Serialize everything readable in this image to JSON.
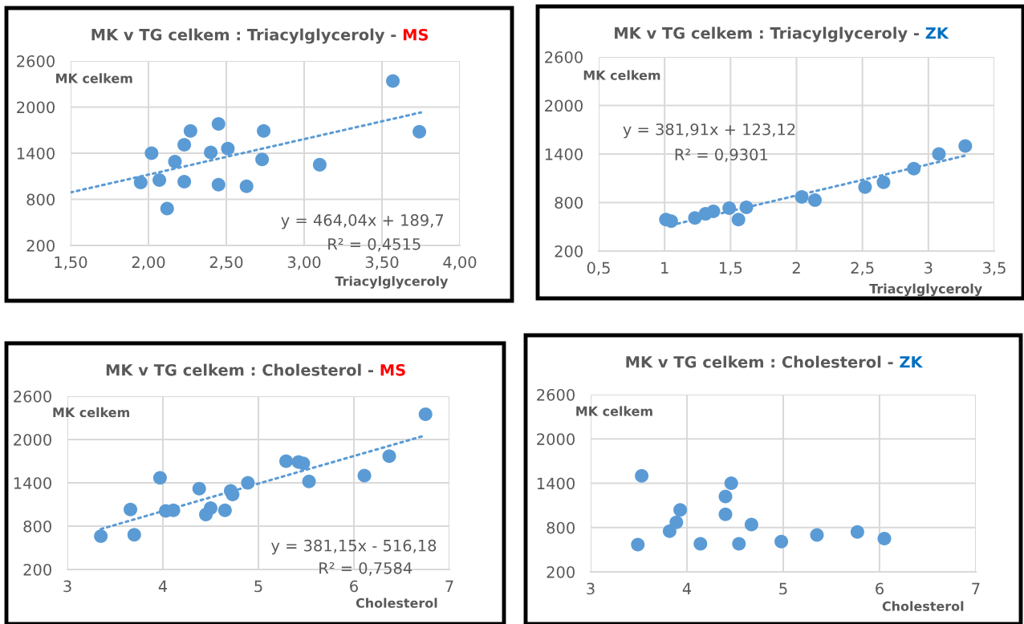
{
  "chart_data": [
    {
      "type": "scatter",
      "title": "MK v TG celkem : Triacylglyceroly - MS",
      "xlabel": "Triacylglyceroly",
      "ylabel": "MK celkem",
      "xlim": [
        1.5,
        4.0
      ],
      "xticks": [
        {
          "value": 1.5,
          "label": "1,50"
        },
        {
          "value": 2.0,
          "label": "2,00"
        },
        {
          "value": 2.5,
          "label": "2,50"
        },
        {
          "value": 3.0,
          "label": "3,00"
        },
        {
          "value": 3.5,
          "label": "3,50"
        },
        {
          "value": 4.0,
          "label": "4,00"
        }
      ],
      "ylim": [
        200,
        2600
      ],
      "yticks": [
        200,
        800,
        1400,
        2000,
        2600
      ],
      "grid": true,
      "annotations": [
        "y = 464,04x + 189,7",
        "R² = 0,4515"
      ],
      "series": [
        {
          "marker": "circle",
          "color": "#5b9bd5",
          "x": [
            3.57,
            3.74,
            2.45,
            2.27,
            2.74,
            2.23,
            2.51,
            2.4,
            2.02,
            2.17,
            2.73,
            3.1,
            1.95,
            2.07,
            2.23,
            2.45,
            2.63,
            2.12
          ],
          "values": [
            2340,
            1680,
            1780,
            1690,
            1690,
            1510,
            1460,
            1410,
            1400,
            1290,
            1320,
            1250,
            1020,
            1050,
            1030,
            990,
            970,
            680
          ]
        },
        {
          "type": "line",
          "color": "#5b9bd5",
          "line_style": "dotted",
          "x": [
            1.5,
            3.75
          ],
          "values": [
            890,
            1930
          ]
        }
      ]
    },
    {
      "type": "scatter",
      "title": "MK v TG celkem : Triacylglyceroly - ZK",
      "xlabel": "Triacylglyceroly",
      "ylabel": "MK celkem",
      "xlim": [
        0.5,
        3.5
      ],
      "xticks": [
        {
          "value": 0.5,
          "label": "0,5"
        },
        1,
        {
          "value": 1.5,
          "label": "1,5"
        },
        2,
        {
          "value": 2.5,
          "label": "2,5"
        },
        3,
        {
          "value": 3.5,
          "label": "3,5"
        }
      ],
      "ylim": [
        200,
        2600
      ],
      "yticks": [
        200,
        800,
        1400,
        2000,
        2600
      ],
      "grid": true,
      "annotations": [
        "y = 381,91x + 123,12",
        "R² = 0,9301"
      ],
      "series": [
        {
          "marker": "circle",
          "color": "#5b9bd5",
          "x": [
            1.01,
            1.05,
            1.23,
            1.31,
            1.37,
            1.49,
            1.56,
            1.62,
            2.04,
            2.14,
            2.52,
            2.66,
            2.89,
            3.08,
            3.28
          ],
          "values": [
            590,
            570,
            610,
            660,
            690,
            730,
            590,
            740,
            870,
            830,
            990,
            1050,
            1220,
            1400,
            1500
          ]
        },
        {
          "type": "line",
          "color": "#5b9bd5",
          "line_style": "dotted",
          "x": [
            1.05,
            3.28
          ],
          "values": [
            520,
            1380
          ]
        }
      ]
    },
    {
      "type": "scatter",
      "title": "MK v TG celkem : Cholesterol - MS",
      "xlabel": "Cholesterol",
      "ylabel": "MK celkem",
      "xlim": [
        3,
        7
      ],
      "xticks": [
        3,
        4,
        5,
        6,
        7
      ],
      "ylim": [
        200,
        2600
      ],
      "yticks": [
        200,
        800,
        1400,
        2000,
        2600
      ],
      "grid": true,
      "annotations": [
        "y = 381,15x - 516,18",
        "R² = 0,7584"
      ],
      "series": [
        {
          "marker": "circle",
          "color": "#5b9bd5",
          "x": [
            6.75,
            6.37,
            5.29,
            5.42,
            5.47,
            6.11,
            5.53,
            4.89,
            3.97,
            4.38,
            4.71,
            4.73,
            3.66,
            4.03,
            4.11,
            4.45,
            4.5,
            4.65,
            3.35,
            3.7
          ],
          "values": [
            2350,
            1770,
            1700,
            1690,
            1670,
            1500,
            1420,
            1400,
            1470,
            1320,
            1290,
            1240,
            1030,
            1010,
            1020,
            960,
            1050,
            1020,
            660,
            680
          ]
        },
        {
          "type": "line",
          "color": "#5b9bd5",
          "line_style": "dotted",
          "x": [
            3.35,
            6.73
          ],
          "values": [
            760,
            2050
          ]
        }
      ]
    },
    {
      "type": "scatter",
      "title": "MK v TG celkem : Cholesterol - ZK",
      "xlabel": "Cholesterol",
      "ylabel": "MK celkem",
      "xlim": [
        3,
        7
      ],
      "xticks": [
        3,
        4,
        5,
        6,
        7
      ],
      "ylim": [
        200,
        2600
      ],
      "yticks": [
        200,
        800,
        1400,
        2000,
        2600
      ],
      "grid": true,
      "series": [
        {
          "marker": "circle",
          "color": "#5b9bd5",
          "x": [
            3.53,
            4.46,
            4.4,
            3.93,
            4.4,
            3.89,
            4.67,
            3.82,
            3.49,
            4.14,
            4.54,
            4.98,
            5.35,
            5.77,
            6.05
          ],
          "values": [
            1500,
            1400,
            1220,
            1040,
            980,
            870,
            840,
            750,
            570,
            580,
            580,
            610,
            700,
            740,
            650
          ]
        }
      ]
    }
  ]
}
